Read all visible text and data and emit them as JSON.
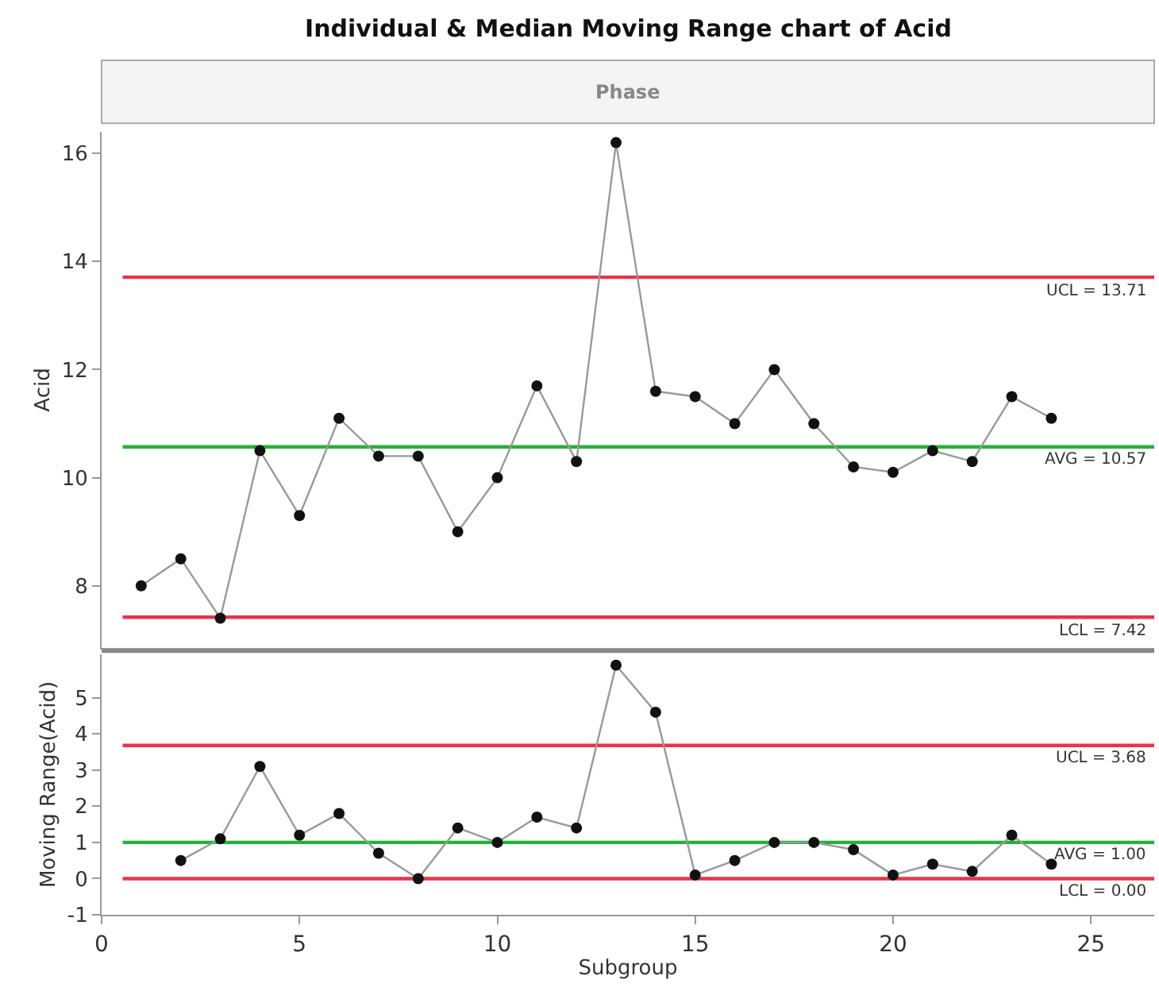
{
  "chart_data": [
    {
      "type": "line",
      "title": "Individual & Median Moving Range chart of Acid",
      "annotations": [
        "Phase"
      ],
      "ylabel": "Acid",
      "x": [
        1,
        2,
        3,
        4,
        5,
        6,
        7,
        8,
        9,
        10,
        11,
        12,
        13,
        14,
        15,
        16,
        17,
        18,
        19,
        20,
        21,
        22,
        23,
        24
      ],
      "series": [
        {
          "color": "#999999",
          "values": [
            8.0,
            8.5,
            7.4,
            10.5,
            9.3,
            11.1,
            10.4,
            10.4,
            9.0,
            10.0,
            11.7,
            10.3,
            16.2,
            11.6,
            11.5,
            11.0,
            12.0,
            11.0,
            10.2,
            10.1,
            10.5,
            10.3,
            11.5,
            11.1
          ]
        }
      ],
      "xlim": [
        0,
        26.6
      ],
      "ylim": [
        6.85,
        16.4
      ],
      "yticks": [
        8,
        10,
        12,
        14,
        16
      ],
      "tick_labels": "y",
      "marker": "circle",
      "grid": false,
      "ref_lines": [
        {
          "axis": "y",
          "value": 13.71,
          "label": "UCL = 13.71",
          "color": "#e8344a"
        },
        {
          "axis": "y",
          "value": 10.57,
          "label": "AVG = 10.57",
          "color": "#22b33a"
        },
        {
          "axis": "y",
          "value": 7.42,
          "label": "LCL = 7.42",
          "color": "#e8344a"
        }
      ]
    },
    {
      "type": "line",
      "xlabel": "Subgroup",
      "ylabel": "Moving Range(Acid)",
      "x": [
        2,
        3,
        4,
        5,
        6,
        7,
        8,
        9,
        10,
        11,
        12,
        13,
        14,
        15,
        16,
        17,
        18,
        19,
        20,
        21,
        22,
        23,
        24
      ],
      "series": [
        {
          "color": "#999999",
          "values": [
            0.5,
            1.1,
            3.1,
            1.2,
            1.8,
            0.7,
            0.0,
            1.4,
            1.0,
            1.7,
            1.4,
            5.9,
            4.6,
            0.1,
            0.5,
            1.0,
            1.0,
            0.8,
            0.1,
            0.4,
            0.2,
            1.2,
            0.4
          ]
        }
      ],
      "xlim": [
        0,
        26.6
      ],
      "xticks": [
        0,
        5,
        10,
        15,
        20,
        25
      ],
      "ylim": [
        -1,
        6.2
      ],
      "yticks": [
        -1,
        0,
        1,
        2,
        3,
        4,
        5
      ],
      "marker": "circle",
      "grid": false,
      "ref_lines": [
        {
          "axis": "y",
          "value": 3.68,
          "label": "UCL = 3.68",
          "color": "#e8344a"
        },
        {
          "axis": "y",
          "value": 1.0,
          "label": "AVG = 1.00",
          "color": "#22b33a"
        },
        {
          "axis": "y",
          "value": 0.0,
          "label": "LCL = 0.00",
          "color": "#e8344a"
        }
      ]
    }
  ]
}
